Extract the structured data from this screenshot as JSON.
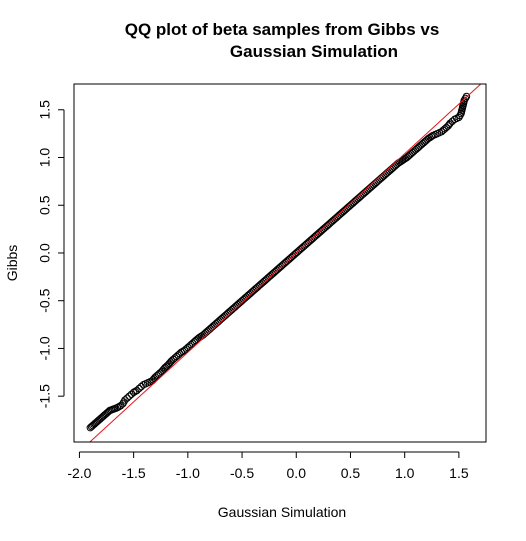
{
  "chart_data": {
    "type": "scatter",
    "title_lines": [
      "QQ plot of beta samples from Gibbs vs",
      "Gaussian Simulation"
    ],
    "xlabel": "Gaussian Simulation",
    "ylabel": "Gibbs",
    "xlim": [
      -2.05,
      1.75
    ],
    "ylim": [
      -1.98,
      1.77
    ],
    "x_ticks": [
      -2.0,
      -1.5,
      -1.0,
      -0.5,
      0.0,
      0.5,
      1.0,
      1.5
    ],
    "x_tick_labels": [
      "-2.0",
      "-1.5",
      "-1.0",
      "-0.5",
      "0.0",
      "0.5",
      "1.0",
      "1.5"
    ],
    "y_ticks": [
      -1.5,
      -1.0,
      -0.5,
      0.0,
      0.5,
      1.0,
      1.5
    ],
    "y_tick_labels": [
      "-1.5",
      "-1.0",
      "-0.5",
      "0.0",
      "0.5",
      "1.0",
      "1.5"
    ],
    "reference_line": {
      "intercept": 0.0,
      "slope": 1.04,
      "color": "#e8161b"
    },
    "point_color": "#000000",
    "points": {
      "x": [
        -1.9,
        -1.72,
        -1.65,
        -1.62,
        -1.6,
        -1.58,
        -1.56,
        -1.54,
        -1.52,
        -1.5,
        -1.47,
        -1.45,
        -1.43,
        -1.41,
        -1.39,
        -1.37,
        -1.35,
        -1.33,
        -1.3,
        -1.27,
        -1.24,
        -1.21,
        -1.18,
        -1.15,
        -1.12,
        -1.09,
        -1.06,
        -1.03,
        -1.0,
        -0.97,
        -0.94,
        -0.9,
        -0.86,
        -0.82,
        -0.78,
        -0.74,
        -0.7,
        -0.66,
        -0.62,
        -0.58,
        -0.54,
        -0.5,
        -0.46,
        -0.42,
        -0.38,
        -0.34,
        -0.3,
        -0.26,
        -0.22,
        -0.18,
        -0.14,
        -0.1,
        -0.06,
        -0.02,
        0.02,
        0.06,
        0.1,
        0.14,
        0.18,
        0.22,
        0.26,
        0.3,
        0.34,
        0.38,
        0.42,
        0.46,
        0.5,
        0.54,
        0.58,
        0.62,
        0.66,
        0.7,
        0.74,
        0.78,
        0.82,
        0.86,
        0.9,
        0.94,
        0.98,
        1.02,
        1.06,
        1.1,
        1.14,
        1.18,
        1.22,
        1.26,
        1.3,
        1.34,
        1.37,
        1.4,
        1.42,
        1.44,
        1.46,
        1.48,
        1.5,
        1.52,
        1.55,
        1.57
      ],
      "y": [
        -1.83,
        -1.65,
        -1.62,
        -1.6,
        -1.58,
        -1.54,
        -1.52,
        -1.5,
        -1.48,
        -1.46,
        -1.44,
        -1.42,
        -1.4,
        -1.38,
        -1.37,
        -1.36,
        -1.35,
        -1.34,
        -1.3,
        -1.27,
        -1.24,
        -1.2,
        -1.17,
        -1.13,
        -1.1,
        -1.07,
        -1.04,
        -1.02,
        -0.99,
        -0.96,
        -0.93,
        -0.89,
        -0.86,
        -0.82,
        -0.78,
        -0.74,
        -0.7,
        -0.66,
        -0.62,
        -0.58,
        -0.54,
        -0.5,
        -0.46,
        -0.42,
        -0.38,
        -0.34,
        -0.3,
        -0.26,
        -0.22,
        -0.18,
        -0.14,
        -0.1,
        -0.06,
        -0.02,
        0.02,
        0.06,
        0.1,
        0.14,
        0.18,
        0.22,
        0.26,
        0.3,
        0.34,
        0.38,
        0.42,
        0.46,
        0.5,
        0.54,
        0.58,
        0.62,
        0.66,
        0.7,
        0.74,
        0.78,
        0.82,
        0.86,
        0.9,
        0.94,
        0.97,
        1.0,
        1.04,
        1.08,
        1.12,
        1.16,
        1.2,
        1.23,
        1.25,
        1.27,
        1.3,
        1.33,
        1.36,
        1.38,
        1.4,
        1.41,
        1.42,
        1.46,
        1.6,
        1.64
      ]
    }
  }
}
